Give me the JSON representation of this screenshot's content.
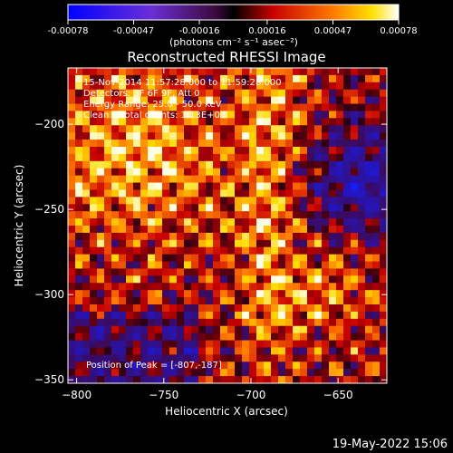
{
  "chart_data": {
    "type": "heatmap",
    "title": "Reconstructed RHESSI Image",
    "xlabel": "Heliocentric X (arcsec)",
    "ylabel": "Heliocentric Y (arcsec)",
    "xlim": [
      -805,
      -622
    ],
    "ylim": [
      -352,
      -167
    ],
    "xticks": [
      -800,
      -750,
      -700,
      -650
    ],
    "yticks": [
      -200,
      -250,
      -300,
      -350
    ],
    "colorbar": {
      "ticks": [
        "-0.00078",
        "-0.00047",
        "-0.00016",
        "0.00016",
        "0.00047",
        "0.00078"
      ],
      "range": [
        -0.00078,
        0.00078
      ],
      "unit_label": "(photons cm⁻² s⁻¹ asec⁻²)"
    },
    "annotations": [
      "15-Nov-2014 11:57:28.000 to 11:59:28.000",
      "Detectors: 3F 6F 9F, Att 0",
      "Energy Range: 25.0 - 50.0 keV",
      "Clean    Total counts: 1.13E+03"
    ],
    "peak": "Position of Peak = [-807,-187]",
    "footer": "19-May-2022 15:06",
    "notes": "Image is a noisy Clean reconstruction; bright yellow/white speckles concentrated upper-left and along x≈-680, dark blue/purple to the right."
  }
}
